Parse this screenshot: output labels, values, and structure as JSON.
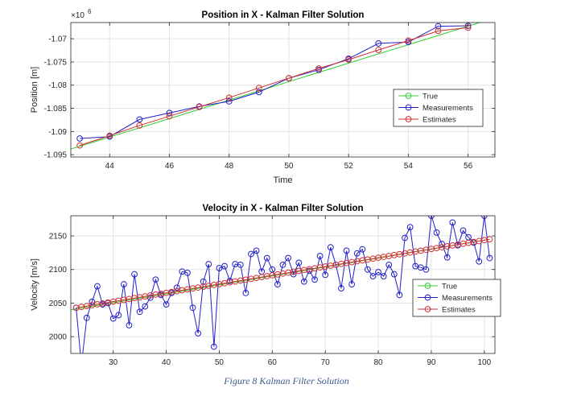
{
  "caption": "Figure 8 Kalman Filter Solution",
  "chart_data": [
    {
      "type": "line",
      "title": "Position in X - Kalman Filter Solution",
      "xlabel": "Time",
      "ylabel": "Position [m]",
      "exponent_label": "×10",
      "exponent_power": "6",
      "xlim": [
        42.7,
        56.9
      ],
      "ylim": [
        -1.0955,
        -1.0665
      ],
      "xticks": [
        "44",
        "46",
        "48",
        "50",
        "52",
        "54",
        "56"
      ],
      "xtick_values": [
        44,
        46,
        48,
        50,
        52,
        54,
        56
      ],
      "yticks": [
        "-1.07",
        "-1.075",
        "-1.08",
        "-1.085",
        "-1.09",
        "-1.095"
      ],
      "ytick_values": [
        -1.07,
        -1.075,
        -1.08,
        -1.085,
        -1.09,
        -1.095
      ],
      "grid": true,
      "legend_position": "right",
      "series": [
        {
          "name": "True",
          "color": "#33cc33",
          "marker": "none",
          "x": [
            42.7,
            56.9
          ],
          "y": [
            -1.0938,
            -1.0655
          ]
        },
        {
          "name": "Measurements",
          "color": "#2020c8",
          "marker": "circle",
          "x": [
            43,
            44,
            45,
            46,
            47,
            48,
            49,
            50,
            51,
            52,
            53,
            54,
            55,
            56
          ],
          "y": [
            -1.0915,
            -1.0911,
            -1.0874,
            -1.086,
            -1.0846,
            -1.0835,
            -1.0815,
            -1.0785,
            -1.0767,
            -1.0743,
            -1.071,
            -1.0707,
            -1.0673,
            -1.0672
          ]
        },
        {
          "name": "Estimates",
          "color": "#d03030",
          "marker": "circle",
          "x": [
            43,
            44,
            45,
            46,
            47,
            48,
            49,
            50,
            51,
            52,
            53,
            54,
            55,
            56
          ],
          "y": [
            -1.093,
            -1.0909,
            -1.0887,
            -1.0867,
            -1.0847,
            -1.0827,
            -1.0806,
            -1.0785,
            -1.0764,
            -1.0745,
            -1.0724,
            -1.0704,
            -1.0683,
            -1.0676
          ]
        }
      ]
    },
    {
      "type": "line",
      "title": "Velocity in X - Kalman Filter Solution",
      "xlabel": "",
      "ylabel": "Velocity [m/s]",
      "xlim": [
        22,
        102
      ],
      "ylim": [
        1975,
        2180
      ],
      "xticks": [
        "30",
        "40",
        "50",
        "60",
        "70",
        "80",
        "90",
        "100"
      ],
      "xtick_values": [
        30,
        40,
        50,
        60,
        70,
        80,
        90,
        100
      ],
      "yticks": [
        "2150",
        "2100",
        "2050",
        "2000"
      ],
      "ytick_values": [
        2150,
        2100,
        2050,
        2000
      ],
      "grid": true,
      "legend_position": "right",
      "series": [
        {
          "name": "True",
          "color": "#33cc33",
          "marker": "none",
          "x": [
            22,
            101
          ],
          "y": [
            2040,
            2145
          ]
        },
        {
          "name": "Measurements",
          "color": "#2020c8",
          "marker": "circle",
          "x": [
            23,
            24,
            25,
            26,
            27,
            28,
            29,
            30,
            31,
            32,
            33,
            34,
            35,
            36,
            37,
            38,
            39,
            40,
            41,
            42,
            43,
            44,
            45,
            46,
            47,
            48,
            49,
            50,
            51,
            52,
            53,
            54,
            55,
            56,
            57,
            58,
            59,
            60,
            61,
            62,
            63,
            64,
            65,
            66,
            67,
            68,
            69,
            70,
            71,
            72,
            73,
            74,
            75,
            76,
            77,
            78,
            79,
            80,
            81,
            82,
            83,
            84,
            85,
            86,
            87,
            88,
            89,
            90,
            91,
            92,
            93,
            94,
            95,
            96,
            97,
            98,
            99,
            100,
            101
          ],
          "y": [
            2043,
            1958,
            2028,
            2052,
            2075,
            2048,
            2050,
            2027,
            2032,
            2078,
            2017,
            2093,
            2037,
            2045,
            2058,
            2085,
            2062,
            2048,
            2065,
            2073,
            2097,
            2095,
            2043,
            2005,
            2082,
            2108,
            1985,
            2102,
            2105,
            2083,
            2108,
            2107,
            2065,
            2123,
            2128,
            2097,
            2117,
            2100,
            2078,
            2107,
            2117,
            2093,
            2110,
            2082,
            2098,
            2085,
            2120,
            2092,
            2133,
            2107,
            2072,
            2128,
            2078,
            2124,
            2130,
            2100,
            2090,
            2096,
            2090,
            2107,
            2093,
            2062,
            2147,
            2163,
            2105,
            2103,
            2100,
            2180,
            2155,
            2138,
            2118,
            2170,
            2136,
            2158,
            2148,
            2140,
            2112,
            2180,
            2117
          ]
        },
        {
          "name": "Estimates",
          "color": "#d03030",
          "marker": "circle",
          "x": [
            23,
            24,
            25,
            26,
            27,
            28,
            29,
            30,
            31,
            32,
            33,
            34,
            35,
            36,
            37,
            38,
            39,
            40,
            41,
            42,
            43,
            44,
            45,
            46,
            47,
            48,
            49,
            50,
            51,
            52,
            53,
            54,
            55,
            56,
            57,
            58,
            59,
            60,
            61,
            62,
            63,
            64,
            65,
            66,
            67,
            68,
            69,
            70,
            71,
            72,
            73,
            74,
            75,
            76,
            77,
            78,
            79,
            80,
            81,
            82,
            83,
            84,
            85,
            86,
            87,
            88,
            89,
            90,
            91,
            92,
            93,
            94,
            95,
            96,
            97,
            98,
            99,
            100,
            101
          ],
          "y": [
            2043.0,
            2044.3,
            2045.6,
            2046.9,
            2048.2,
            2049.5,
            2050.8,
            2052.2,
            2053.5,
            2054.8,
            2056.1,
            2057.4,
            2058.7,
            2060.0,
            2061.3,
            2062.6,
            2063.9,
            2065.2,
            2066.5,
            2067.8,
            2069.1,
            2070.5,
            2071.8,
            2073.1,
            2074.4,
            2075.7,
            2077.0,
            2078.3,
            2079.6,
            2080.9,
            2082.2,
            2083.5,
            2084.8,
            2086.1,
            2087.4,
            2088.8,
            2090.1,
            2091.4,
            2092.7,
            2094.0,
            2095.3,
            2096.6,
            2097.9,
            2099.2,
            2100.5,
            2101.8,
            2103.1,
            2104.4,
            2105.7,
            2107.1,
            2108.4,
            2109.7,
            2111.0,
            2112.3,
            2113.6,
            2114.9,
            2116.2,
            2117.5,
            2118.8,
            2120.1,
            2121.4,
            2122.7,
            2124.0,
            2125.4,
            2126.7,
            2128.0,
            2129.3,
            2130.6,
            2131.9,
            2133.2,
            2134.5,
            2135.8,
            2137.1,
            2138.4,
            2139.7,
            2141.0,
            2142.3,
            2143.7,
            2145.0
          ]
        }
      ]
    }
  ]
}
